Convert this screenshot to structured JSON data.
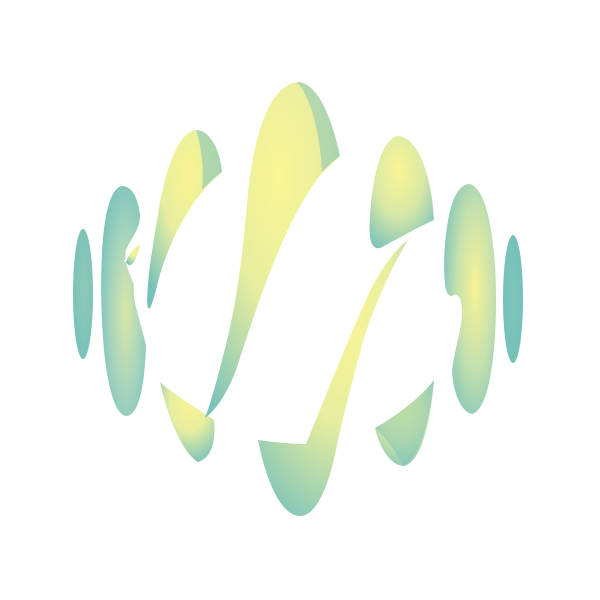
{
  "figure": {
    "kind": "3D surface render (sliced sphere), axes hidden",
    "background": "#ffffff",
    "colors": {
      "teal": "#77c1bb",
      "teal_light": "#9fd2bf",
      "yellow": "#f8f28e",
      "yellow_light": "#fbf59c"
    },
    "slice_count": 8
  }
}
